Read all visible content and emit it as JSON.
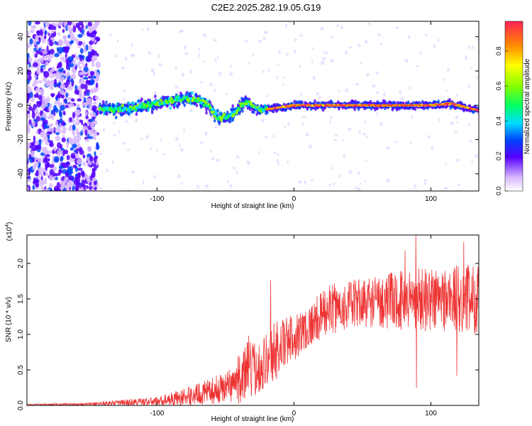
{
  "title": "C2E2.2025.282.19.05.G19",
  "colors": {
    "signal": "#ee3333",
    "axis": "#000000",
    "plot_bg": "#ffffff"
  },
  "chart_data": [
    {
      "type": "heatmap",
      "name": "spectrogram",
      "xlabel": "Height of straight line (km)",
      "ylabel": "Frequency (Hz)",
      "xlim": [
        -195,
        135
      ],
      "ylim": [
        -50,
        49
      ],
      "x_ticks": [
        -100,
        0,
        100
      ],
      "x_tick_labels": [
        "-100",
        "0",
        "100"
      ],
      "y_ticks": [
        -40,
        -20,
        0,
        20,
        40
      ],
      "y_tick_labels": [
        "-40",
        "-20",
        "0",
        "20",
        "40"
      ],
      "colorbar": {
        "label": "Normalized spectral amplitude",
        "range": [
          0,
          0.97
        ],
        "ticks": [
          0.0,
          0.2,
          0.4,
          0.6,
          0.8
        ],
        "tick_labels": [
          "0.0",
          "0.2",
          "0.4",
          "0.6",
          "0.8"
        ]
      },
      "ridge": {
        "description_points": [
          {
            "x": -142,
            "f": -2
          },
          {
            "x": -120,
            "f": -2
          },
          {
            "x": -100,
            "f": 1
          },
          {
            "x": -80,
            "f": 4
          },
          {
            "x": -65,
            "f": 2
          },
          {
            "x": -55,
            "f": -8
          },
          {
            "x": -45,
            "f": -6
          },
          {
            "x": -35,
            "f": 2
          },
          {
            "x": -25,
            "f": -3
          },
          {
            "x": 0,
            "f": 0
          },
          {
            "x": 50,
            "f": 0
          },
          {
            "x": 100,
            "f": 0
          },
          {
            "x": 115,
            "f": 1
          },
          {
            "x": 135,
            "f": -3
          }
        ],
        "noise_region_x": [
          -195,
          -143
        ]
      }
    },
    {
      "type": "line",
      "name": "snr",
      "xlabel": "Height of straight line (km)",
      "ylabel": "SNR (10 * v/v)",
      "y_scale_label": "(x10",
      "y_scale_exp": "4",
      "y_scale_close": ")",
      "xlim": [
        -195,
        135
      ],
      "ylim": [
        0,
        2.4
      ],
      "x_ticks": [
        -100,
        0,
        100
      ],
      "x_tick_labels": [
        "-100",
        "0",
        "100"
      ],
      "y_ticks": [
        0.0,
        0.5,
        1.0,
        1.5,
        2.0
      ],
      "y_tick_labels": [
        "0.0",
        "0.5",
        "1.0",
        "1.5",
        "2.0"
      ],
      "envelope": [
        {
          "x": -195,
          "mean": 0.01,
          "amp": 0.01
        },
        {
          "x": -150,
          "mean": 0.02,
          "amp": 0.02
        },
        {
          "x": -100,
          "mean": 0.06,
          "amp": 0.06
        },
        {
          "x": -80,
          "mean": 0.12,
          "amp": 0.12
        },
        {
          "x": -60,
          "mean": 0.2,
          "amp": 0.18
        },
        {
          "x": -45,
          "mean": 0.3,
          "amp": 0.25
        },
        {
          "x": -35,
          "mean": 0.45,
          "amp": 0.45
        },
        {
          "x": -25,
          "mean": 0.55,
          "amp": 0.35
        },
        {
          "x": -15,
          "mean": 0.75,
          "amp": 0.45
        },
        {
          "x": -5,
          "mean": 0.9,
          "amp": 0.35
        },
        {
          "x": 10,
          "mean": 1.1,
          "amp": 0.3
        },
        {
          "x": 25,
          "mean": 1.35,
          "amp": 0.35
        },
        {
          "x": 50,
          "mean": 1.45,
          "amp": 0.35
        },
        {
          "x": 90,
          "mean": 1.5,
          "amp": 0.45
        },
        {
          "x": 135,
          "mean": 1.5,
          "amp": 0.5
        }
      ],
      "spikes": [
        {
          "x": -17,
          "y": 1.76
        },
        {
          "x": -33,
          "y": 0.98
        },
        {
          "x": 89,
          "y": 2.4
        },
        {
          "x": 81,
          "y": 2.18
        },
        {
          "x": 89.5,
          "y": 0.25
        },
        {
          "x": 119,
          "y": 0.42
        },
        {
          "x": 124,
          "y": 2.3
        }
      ]
    }
  ]
}
